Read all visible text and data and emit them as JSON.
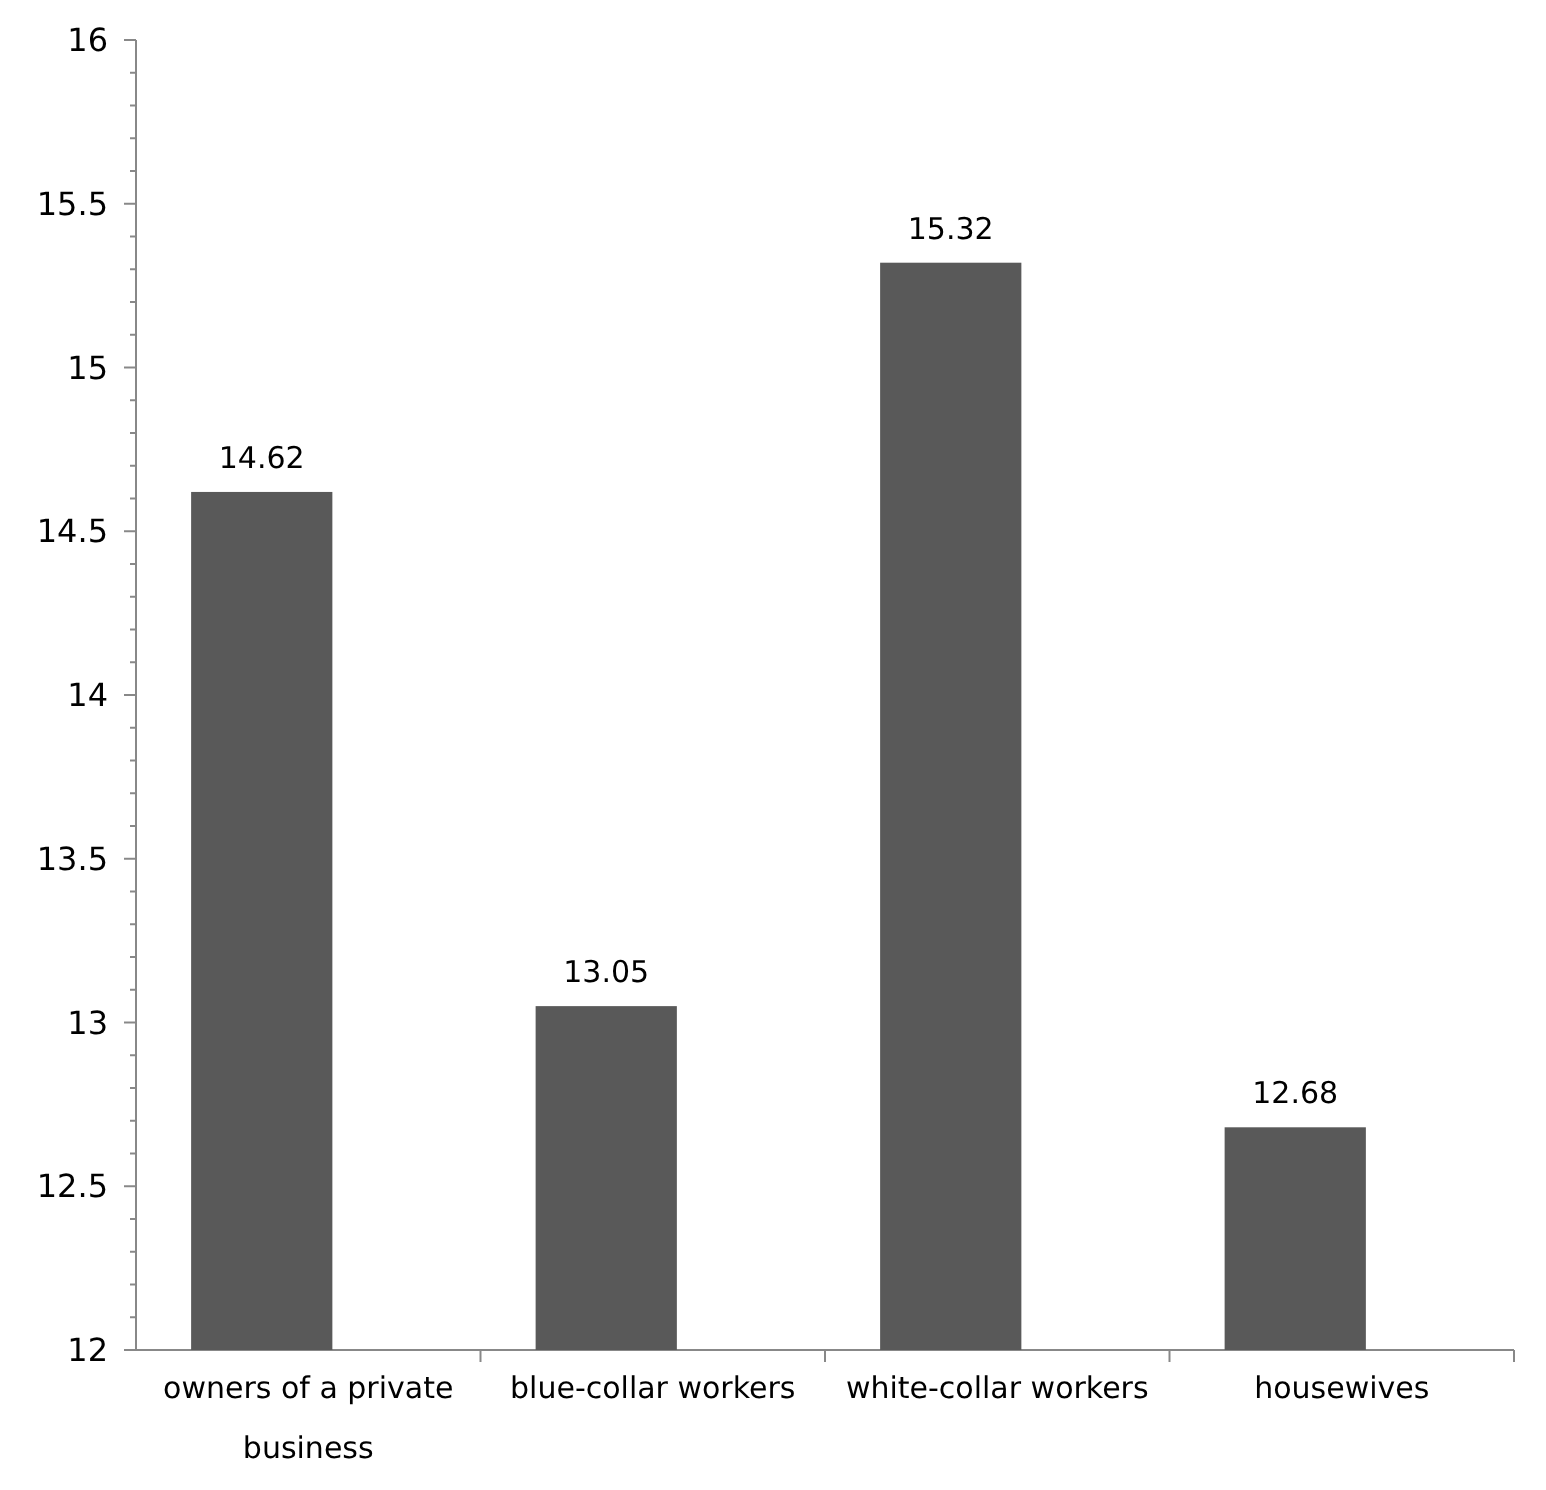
{
  "chart_data": {
    "type": "bar",
    "categories": [
      "owners of a private business",
      "blue-collar workers",
      "white-collar workers",
      "housewives"
    ],
    "values": [
      14.62,
      13.05,
      15.32,
      12.68
    ],
    "color": "#595959",
    "data_labels": true,
    "ylim": [
      12,
      16
    ],
    "yticks": [
      12,
      {
        "value": 12.1,
        "label": null
      },
      {
        "value": 12.2,
        "label": null
      },
      {
        "value": 12.3,
        "label": null
      },
      {
        "value": 12.4,
        "label": null
      },
      12.5,
      {
        "value": 12.6,
        "label": null
      },
      {
        "value": 12.7,
        "label": null
      },
      {
        "value": 12.8,
        "label": null
      },
      {
        "value": 12.9,
        "label": null
      },
      13,
      {
        "value": 13.1,
        "label": null
      },
      {
        "value": 13.2,
        "label": null
      },
      {
        "value": 13.3,
        "label": null
      },
      {
        "value": 13.4,
        "label": null
      },
      13.5,
      {
        "value": 13.6,
        "label": null
      },
      {
        "value": 13.7,
        "label": null
      },
      {
        "value": 13.8,
        "label": null
      },
      {
        "value": 13.9,
        "label": null
      },
      14,
      {
        "value": 14.1,
        "label": null
      },
      {
        "value": 14.2,
        "label": null
      },
      {
        "value": 14.3,
        "label": null
      },
      {
        "value": 14.4,
        "label": null
      },
      14.5,
      {
        "value": 14.6,
        "label": null
      },
      {
        "value": 14.7,
        "label": null
      },
      {
        "value": 14.8,
        "label": null
      },
      {
        "value": 14.9,
        "label": null
      },
      15,
      {
        "value": 15.1,
        "label": null
      },
      {
        "value": 15.2,
        "label": null
      },
      {
        "value": 15.3,
        "label": null
      },
      {
        "value": 15.4,
        "label": null
      },
      15.5,
      {
        "value": 15.6,
        "label": null
      },
      {
        "value": 15.7,
        "label": null
      },
      {
        "value": 15.8,
        "label": null
      },
      {
        "value": 15.9,
        "label": null
      },
      16
    ],
    "grid": false
  }
}
